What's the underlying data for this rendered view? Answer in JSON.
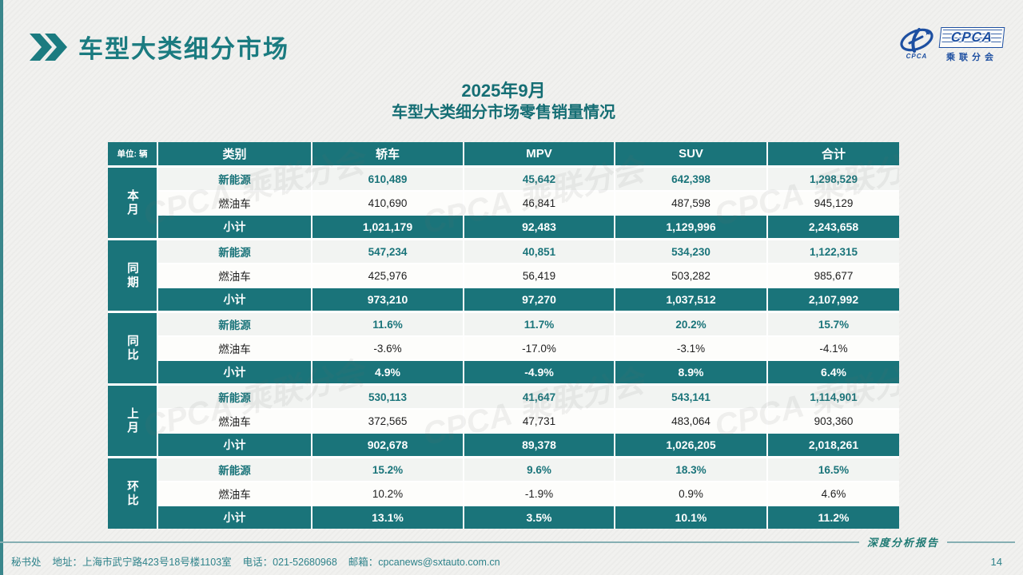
{
  "header": {
    "title": "车型大类细分市场"
  },
  "logo": {
    "emblem_text": "CPCA",
    "acronym": "CPCA",
    "subtitle": "乘联分会"
  },
  "table_title": {
    "line1": "2025年9月",
    "line2": "车型大类细分市场零售销量情况"
  },
  "table": {
    "unit_label": "单位: 辆",
    "columns": [
      "类别",
      "轿车",
      "MPV",
      "SUV",
      "合计"
    ],
    "groups": [
      {
        "label": "本月",
        "rows": [
          {
            "type": "new_energy",
            "label": "新能源",
            "values": [
              "610,489",
              "45,642",
              "642,398",
              "1,298,529"
            ]
          },
          {
            "type": "fuel",
            "label": "燃油车",
            "values": [
              "410,690",
              "46,841",
              "487,598",
              "945,129"
            ]
          },
          {
            "type": "subtotal",
            "label": "小计",
            "values": [
              "1,021,179",
              "92,483",
              "1,129,996",
              "2,243,658"
            ]
          }
        ]
      },
      {
        "label": "同期",
        "rows": [
          {
            "type": "new_energy",
            "label": "新能源",
            "values": [
              "547,234",
              "40,851",
              "534,230",
              "1,122,315"
            ]
          },
          {
            "type": "fuel",
            "label": "燃油车",
            "values": [
              "425,976",
              "56,419",
              "503,282",
              "985,677"
            ]
          },
          {
            "type": "subtotal",
            "label": "小计",
            "values": [
              "973,210",
              "97,270",
              "1,037,512",
              "2,107,992"
            ]
          }
        ]
      },
      {
        "label": "同比",
        "rows": [
          {
            "type": "new_energy",
            "label": "新能源",
            "values": [
              "11.6%",
              "11.7%",
              "20.2%",
              "15.7%"
            ]
          },
          {
            "type": "fuel",
            "label": "燃油车",
            "values": [
              "-3.6%",
              "-17.0%",
              "-3.1%",
              "-4.1%"
            ]
          },
          {
            "type": "subtotal",
            "label": "小计",
            "values": [
              "4.9%",
              "-4.9%",
              "8.9%",
              "6.4%"
            ]
          }
        ]
      },
      {
        "label": "上月",
        "rows": [
          {
            "type": "new_energy",
            "label": "新能源",
            "values": [
              "530,113",
              "41,647",
              "543,141",
              "1,114,901"
            ]
          },
          {
            "type": "fuel",
            "label": "燃油车",
            "values": [
              "372,565",
              "47,731",
              "483,064",
              "903,360"
            ]
          },
          {
            "type": "subtotal",
            "label": "小计",
            "values": [
              "902,678",
              "89,378",
              "1,026,205",
              "2,018,261"
            ]
          }
        ]
      },
      {
        "label": "环比",
        "rows": [
          {
            "type": "new_energy",
            "label": "新能源",
            "values": [
              "15.2%",
              "9.6%",
              "18.3%",
              "16.5%"
            ]
          },
          {
            "type": "fuel",
            "label": "燃油车",
            "values": [
              "10.2%",
              "-1.9%",
              "0.9%",
              "4.6%"
            ]
          },
          {
            "type": "subtotal",
            "label": "小计",
            "values": [
              "13.1%",
              "3.5%",
              "10.1%",
              "11.2%"
            ]
          }
        ]
      }
    ]
  },
  "watermark": {
    "text": "CPCA 乘联分会"
  },
  "footer": {
    "secretariat": "秘书处",
    "address": "地址：上海市武宁路423号18号楼1103室",
    "phone": "电话：021-52680968",
    "email": "邮箱：cpcanews@sxtauto.com.cn",
    "report_label": "深度分析报告",
    "page_number": "14"
  },
  "colors": {
    "accent_teal": "#1A747A",
    "logo_blue": "#1D4FA1",
    "new_energy_row_bg": "#F2F4F2",
    "fuel_row_bg": "#FDFDFB",
    "footer_text": "#2E828A",
    "slide_bg": "#F1F1EF"
  }
}
